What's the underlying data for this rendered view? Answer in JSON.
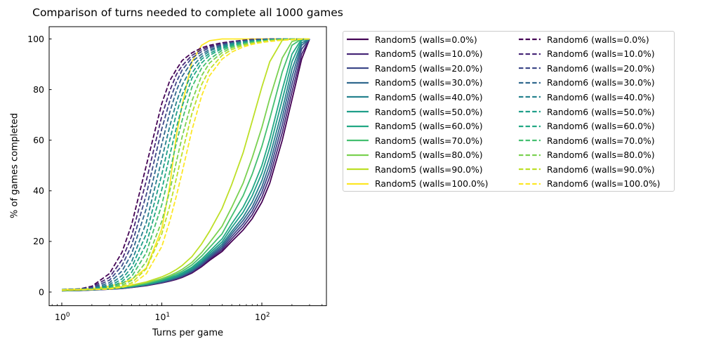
{
  "chart_data": {
    "type": "line",
    "title": "Comparison of turns needed to complete all 1000 games",
    "xlabel": "Turns per game",
    "ylabel": "% of games completed",
    "x_scale": "log",
    "xlim": [
      0.75,
      440
    ],
    "ylim": [
      -5,
      105
    ],
    "grid": false,
    "legend_position": "outside upper right, 2 columns",
    "x_major_ticks": [
      1,
      10,
      100
    ],
    "x_major_tick_labels": [
      {
        "base": "10",
        "exp": "0"
      },
      {
        "base": "10",
        "exp": "1"
      },
      {
        "base": "10",
        "exp": "2"
      }
    ],
    "x_minor_ticks": [
      0.8,
      0.9,
      2,
      3,
      4,
      5,
      6,
      7,
      8,
      9,
      20,
      30,
      40,
      50,
      60,
      70,
      80,
      90,
      200,
      300,
      400
    ],
    "y_ticks": [
      0,
      20,
      40,
      60,
      80,
      100
    ],
    "y_tick_labels": [
      "0",
      "20",
      "40",
      "60",
      "80",
      "100"
    ],
    "x_sample_turns": [
      1,
      1.5,
      2,
      3,
      4,
      5,
      7,
      10,
      12,
      14,
      16,
      20,
      25,
      30,
      40,
      50,
      65,
      80,
      100,
      120,
      160,
      200,
      250,
      300
    ],
    "series": [
      {
        "name": "Random5 (walls=0.0%)",
        "group": "Random5",
        "walls_pct": 0,
        "style": "solid",
        "color": "#440154",
        "pct_complete": [
          0.5,
          0.6,
          0.8,
          1.1,
          1.4,
          1.8,
          2.5,
          3.6,
          4.3,
          5,
          5.8,
          7.5,
          10,
          12.5,
          16,
          20,
          24.5,
          29,
          35.5,
          43,
          60,
          76,
          92,
          100
        ]
      },
      {
        "name": "Random5 (walls=10.0%)",
        "group": "Random5",
        "walls_pct": 10,
        "style": "solid",
        "color": "#482878",
        "pct_complete": [
          0.5,
          0.6,
          0.8,
          1.1,
          1.45,
          1.85,
          2.6,
          3.7,
          4.45,
          5.2,
          6,
          7.8,
          10.4,
          13,
          16.7,
          21,
          25.8,
          30.5,
          37.5,
          45.5,
          63,
          79,
          94,
          100
        ]
      },
      {
        "name": "Random5 (walls=20.0%)",
        "group": "Random5",
        "walls_pct": 20,
        "style": "solid",
        "color": "#3e4989",
        "pct_complete": [
          0.5,
          0.65,
          0.85,
          1.15,
          1.5,
          1.9,
          2.7,
          3.85,
          4.6,
          5.4,
          6.2,
          8.1,
          10.8,
          13.5,
          17.4,
          22,
          27,
          32,
          39.5,
          48,
          66,
          82,
          96,
          100
        ]
      },
      {
        "name": "Random5 (walls=30.0%)",
        "group": "Random5",
        "walls_pct": 30,
        "style": "solid",
        "color": "#31688e",
        "pct_complete": [
          0.55,
          0.7,
          0.9,
          1.2,
          1.55,
          2,
          2.8,
          4,
          4.8,
          5.6,
          6.5,
          8.4,
          11.2,
          14,
          18.1,
          23,
          28.3,
          33.5,
          41.5,
          50.5,
          69,
          85,
          97.5,
          100
        ]
      },
      {
        "name": "Random5 (walls=40.0%)",
        "group": "Random5",
        "walls_pct": 40,
        "style": "solid",
        "color": "#26828e",
        "pct_complete": [
          0.55,
          0.7,
          0.9,
          1.25,
          1.6,
          2.05,
          2.9,
          4.2,
          5,
          5.9,
          6.8,
          8.8,
          11.7,
          14.6,
          18.9,
          24,
          29.6,
          35.5,
          44,
          53.5,
          72,
          88,
          98.5,
          100
        ]
      },
      {
        "name": "Random5 (walls=50.0%)",
        "group": "Random5",
        "walls_pct": 50,
        "style": "solid",
        "color": "#1f9e89",
        "pct_complete": [
          0.6,
          0.75,
          0.95,
          1.3,
          1.7,
          2.15,
          3,
          4.4,
          5.3,
          6.2,
          7.2,
          9.3,
          12.3,
          15.3,
          19.8,
          25.5,
          31.5,
          38,
          47,
          57,
          76,
          91,
          99.5,
          100
        ]
      },
      {
        "name": "Random5 (walls=60.0%)",
        "group": "Random5",
        "walls_pct": 60,
        "style": "solid",
        "color": "#22a884",
        "pct_complete": [
          0.6,
          0.75,
          1,
          1.35,
          1.75,
          2.25,
          3.2,
          4.6,
          5.6,
          6.5,
          7.6,
          9.8,
          13,
          16.1,
          21,
          27,
          33.5,
          40.5,
          50,
          60.5,
          80,
          94,
          100,
          100
        ]
      },
      {
        "name": "Random5 (walls=70.0%)",
        "group": "Random5",
        "walls_pct": 70,
        "style": "solid",
        "color": "#44bf70",
        "pct_complete": [
          0.6,
          0.8,
          1,
          1.4,
          1.85,
          2.4,
          3.4,
          5,
          6,
          7.1,
          8.2,
          10.7,
          14.2,
          17.6,
          23,
          30,
          38,
          46.5,
          57.5,
          68.5,
          87,
          97.5,
          100,
          100
        ]
      },
      {
        "name": "Random5 (walls=80.0%)",
        "group": "Random5",
        "walls_pct": 80,
        "style": "solid",
        "color": "#7ad151",
        "pct_complete": [
          0.65,
          0.8,
          1.05,
          1.5,
          1.95,
          2.55,
          3.6,
          5.3,
          6.5,
          7.7,
          9,
          11.7,
          15.6,
          19.5,
          26,
          33.5,
          43,
          53,
          65,
          76.5,
          92.5,
          99,
          100,
          100
        ]
      },
      {
        "name": "Random5 (walls=90.0%)",
        "group": "Random5",
        "walls_pct": 90,
        "style": "solid",
        "color": "#bddf26",
        "pct_complete": [
          0.7,
          0.9,
          1.1,
          1.6,
          2.1,
          2.75,
          4,
          6,
          7.4,
          8.9,
          10.5,
          14,
          19,
          24,
          33,
          42.5,
          55,
          67.5,
          81,
          91,
          99.5,
          100,
          100,
          100
        ]
      },
      {
        "name": "Random5 (walls=100.0%)",
        "group": "Random5",
        "walls_pct": 100,
        "style": "solid",
        "color": "#fde725",
        "pct_complete": [
          1,
          1.2,
          1.4,
          2.3,
          3.5,
          5,
          9.5,
          25,
          42,
          62,
          74,
          91,
          97.5,
          99.3,
          100,
          100,
          100,
          100,
          100,
          100,
          100,
          100,
          100,
          100
        ]
      },
      {
        "name": "Random6 (walls=0.0%)",
        "group": "Random6",
        "walls_pct": 0,
        "style": "dashed",
        "color": "#440154",
        "pct_complete": [
          1,
          1.2,
          2.3,
          7.3,
          15.7,
          26.7,
          50,
          74.5,
          83.5,
          88,
          91.5,
          94.5,
          96.5,
          97.5,
          98.5,
          99,
          99.5,
          99.8,
          99.9,
          100,
          100,
          100,
          100,
          100
        ]
      },
      {
        "name": "Random6 (walls=10.0%)",
        "group": "Random6",
        "walls_pct": 10,
        "style": "dashed",
        "color": "#482878",
        "pct_complete": [
          1,
          1.2,
          2,
          5.8,
          12.7,
          22.2,
          44,
          69.5,
          79.5,
          86,
          89.5,
          93.5,
          95.8,
          97,
          98.2,
          98.8,
          99.4,
          99.7,
          99.9,
          100,
          100,
          100,
          100,
          100
        ]
      },
      {
        "name": "Random6 (walls=20.0%)",
        "group": "Random6",
        "walls_pct": 20,
        "style": "dashed",
        "color": "#3e4989",
        "pct_complete": [
          1,
          1.1,
          1.7,
          4.7,
          10.4,
          18.5,
          38.5,
          64.5,
          75.5,
          83,
          87.8,
          92.5,
          95,
          96.5,
          97.9,
          98.6,
          99.2,
          99.6,
          99.8,
          99.9,
          100,
          100,
          100,
          100
        ]
      },
      {
        "name": "Random6 (walls=30.0%)",
        "group": "Random6",
        "walls_pct": 30,
        "style": "dashed",
        "color": "#31688e",
        "pct_complete": [
          1,
          1.1,
          1.5,
          3.7,
          8.3,
          15.1,
          33,
          58.5,
          71,
          79.5,
          85.3,
          91,
          94,
          95.8,
          97.5,
          98.3,
          99,
          99.5,
          99.7,
          99.9,
          100,
          100,
          100,
          100
        ]
      },
      {
        "name": "Random6 (walls=40.0%)",
        "group": "Random6",
        "walls_pct": 40,
        "style": "dashed",
        "color": "#26828e",
        "pct_complete": [
          0.9,
          1.1,
          1.3,
          2.9,
          6.5,
          12,
          27.5,
          52.5,
          65.5,
          75,
          81.8,
          89,
          93,
          95.2,
          97.2,
          98.1,
          98.9,
          99.3,
          99.6,
          99.8,
          100,
          100,
          100,
          100
        ]
      },
      {
        "name": "Random6 (walls=50.0%)",
        "group": "Random6",
        "walls_pct": 50,
        "style": "dashed",
        "color": "#1f9e89",
        "pct_complete": [
          0.9,
          1,
          1.2,
          2.3,
          5.2,
          9.7,
          23,
          46.5,
          60,
          70.5,
          78,
          86.5,
          92,
          94.3,
          96.7,
          97.8,
          98.6,
          99.1,
          99.5,
          99.7,
          99.9,
          100,
          100,
          100
        ]
      },
      {
        "name": "Random6 (walls=60.0%)",
        "group": "Random6",
        "walls_pct": 60,
        "style": "dashed",
        "color": "#22a884",
        "pct_complete": [
          0.9,
          1,
          1.1,
          1.9,
          4.1,
          7.8,
          19,
          40.5,
          54,
          65,
          73.5,
          84.5,
          90.5,
          93.5,
          96.2,
          97.4,
          98.3,
          98.9,
          99.4,
          99.6,
          99.9,
          100,
          100,
          100
        ]
      },
      {
        "name": "Random6 (walls=70.0%)",
        "group": "Random6",
        "walls_pct": 70,
        "style": "dashed",
        "color": "#44bf70",
        "pct_complete": [
          0.9,
          1,
          1.1,
          1.6,
          3.3,
          6.1,
          15.5,
          34.5,
          47.5,
          59,
          68,
          81,
          88.5,
          92,
          95.5,
          97,
          98.1,
          98.7,
          99.2,
          99.5,
          99.8,
          100,
          100,
          100
        ]
      },
      {
        "name": "Random6 (walls=80.0%)",
        "group": "Random6",
        "walls_pct": 80,
        "style": "dashed",
        "color": "#7ad151",
        "pct_complete": [
          0.9,
          1,
          1,
          1.4,
          2.7,
          4.6,
          12,
          28,
          40,
          51.5,
          61.5,
          75.5,
          85.5,
          90.5,
          94.6,
          96.5,
          97.8,
          98.5,
          99,
          99.4,
          99.7,
          99.9,
          100,
          100
        ]
      },
      {
        "name": "Random6 (walls=90.0%)",
        "group": "Random6",
        "walls_pct": 90,
        "style": "dashed",
        "color": "#bddf26",
        "pct_complete": [
          0.8,
          0.9,
          1,
          1.3,
          2.2,
          3.6,
          9.2,
          23,
          34,
          45,
          55,
          70.5,
          82,
          88,
          93.5,
          95.8,
          97.4,
          98.2,
          98.9,
          99.3,
          99.6,
          99.8,
          100,
          100
        ]
      },
      {
        "name": "Random6 (walls=100.0%)",
        "group": "Random6",
        "walls_pct": 100,
        "style": "dashed",
        "color": "#fde725",
        "pct_complete": [
          0.8,
          0.9,
          1,
          1.2,
          1.9,
          2.9,
          7.2,
          18,
          28,
          38,
          47.5,
          64,
          77.5,
          85.5,
          92,
          94.8,
          96.8,
          97.9,
          98.6,
          99,
          99.5,
          99.7,
          99.9,
          100
        ]
      }
    ]
  }
}
